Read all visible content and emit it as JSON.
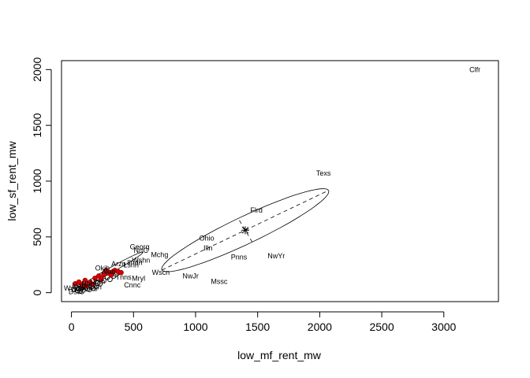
{
  "chart_data": {
    "type": "scatter",
    "xlabel": "low_mf_rent_mw",
    "ylabel": "low_sf_rent_mw",
    "xlim": [
      -80,
      3440
    ],
    "ylim": [
      -80,
      2080
    ],
    "x_ticks": [
      0,
      500,
      1000,
      1500,
      2000,
      2500,
      3000
    ],
    "y_ticks": [
      0,
      500,
      1000,
      1500,
      2000
    ],
    "grid": false,
    "legend": "none",
    "centroid": {
      "x": 1400,
      "y": 560
    },
    "inner_ellipse": {
      "center": [
        330,
        210
      ],
      "semi_major": 290,
      "semi_minor": 22,
      "angle_deg": 32
    },
    "outer_ellipse": {
      "center": [
        1400,
        560
      ],
      "semi_major": 760,
      "semi_minor": 120,
      "angle_deg": 28
    },
    "labeled_points": [
      {
        "label": "Clfr",
        "x": 3250,
        "y": 2000
      },
      {
        "label": "Texs",
        "x": 2030,
        "y": 1070
      },
      {
        "label": "Flrd",
        "x": 1490,
        "y": 740
      },
      {
        "label": "Ohio",
        "x": 1090,
        "y": 490
      },
      {
        "label": "Illn",
        "x": 1100,
        "y": 400
      },
      {
        "label": "NwYr",
        "x": 1650,
        "y": 330
      },
      {
        "label": "Pnns",
        "x": 1350,
        "y": 320
      },
      {
        "label": "NwJr",
        "x": 960,
        "y": 150
      },
      {
        "label": "Mssc",
        "x": 1190,
        "y": 100
      },
      {
        "label": "Wscn",
        "x": 720,
        "y": 180
      },
      {
        "label": "Georg",
        "x": 550,
        "y": 410
      },
      {
        "label": "NrtC",
        "x": 560,
        "y": 380
      },
      {
        "label": "Mchg",
        "x": 710,
        "y": 340
      },
      {
        "label": "Wshn",
        "x": 560,
        "y": 290
      },
      {
        "label": "Ilndn",
        "x": 510,
        "y": 270
      },
      {
        "label": "Arzn",
        "x": 380,
        "y": 260
      },
      {
        "label": "Lsnn",
        "x": 480,
        "y": 250
      },
      {
        "label": "Okih",
        "x": 250,
        "y": 220
      },
      {
        "label": "Alab",
        "x": 300,
        "y": 190
      },
      {
        "label": "Tnns",
        "x": 420,
        "y": 140
      },
      {
        "label": "Mryl",
        "x": 540,
        "y": 130
      },
      {
        "label": "Cnnc",
        "x": 490,
        "y": 70
      },
      {
        "label": "Utah",
        "x": 210,
        "y": 100
      },
      {
        "label": "Nbrs",
        "x": 140,
        "y": 80
      },
      {
        "label": "Idah",
        "x": 60,
        "y": 60
      },
      {
        "label": "Orgn",
        "x": 180,
        "y": 50
      },
      {
        "label": "Wymn",
        "x": 20,
        "y": 40
      },
      {
        "label": "DstC",
        "x": 40,
        "y": 10
      }
    ],
    "red_points": [
      {
        "x": 30,
        "y": 80
      },
      {
        "x": 60,
        "y": 95
      },
      {
        "x": 85,
        "y": 70
      },
      {
        "x": 110,
        "y": 110
      },
      {
        "x": 150,
        "y": 95
      },
      {
        "x": 190,
        "y": 130
      },
      {
        "x": 220,
        "y": 150
      },
      {
        "x": 260,
        "y": 160
      },
      {
        "x": 300,
        "y": 175
      },
      {
        "x": 330,
        "y": 185
      },
      {
        "x": 350,
        "y": 200
      },
      {
        "x": 375,
        "y": 190
      },
      {
        "x": 400,
        "y": 180
      },
      {
        "x": 120,
        "y": 60
      },
      {
        "x": 170,
        "y": 75
      },
      {
        "x": 240,
        "y": 120
      },
      {
        "x": 280,
        "y": 200
      },
      {
        "x": 320,
        "y": 160
      }
    ],
    "black_points": [
      {
        "x": 20,
        "y": 30
      },
      {
        "x": 50,
        "y": 20
      },
      {
        "x": 80,
        "y": 40
      },
      {
        "x": 100,
        "y": 55
      },
      {
        "x": 130,
        "y": 35
      },
      {
        "x": 160,
        "y": 50
      },
      {
        "x": 45,
        "y": 45
      },
      {
        "x": 70,
        "y": 15
      },
      {
        "x": 95,
        "y": 25
      },
      {
        "x": 115,
        "y": 45
      },
      {
        "x": 145,
        "y": 30
      },
      {
        "x": 200,
        "y": 60
      },
      {
        "x": 230,
        "y": 80
      },
      {
        "x": 260,
        "y": 110
      },
      {
        "x": 290,
        "y": 140
      },
      {
        "x": 310,
        "y": 120
      },
      {
        "x": 340,
        "y": 150
      },
      {
        "x": 360,
        "y": 165
      },
      {
        "x": 30,
        "y": 55
      },
      {
        "x": 60,
        "y": 35
      },
      {
        "x": 90,
        "y": 50
      },
      {
        "x": 125,
        "y": 70
      },
      {
        "x": 175,
        "y": 40
      },
      {
        "x": 210,
        "y": 85
      }
    ]
  }
}
